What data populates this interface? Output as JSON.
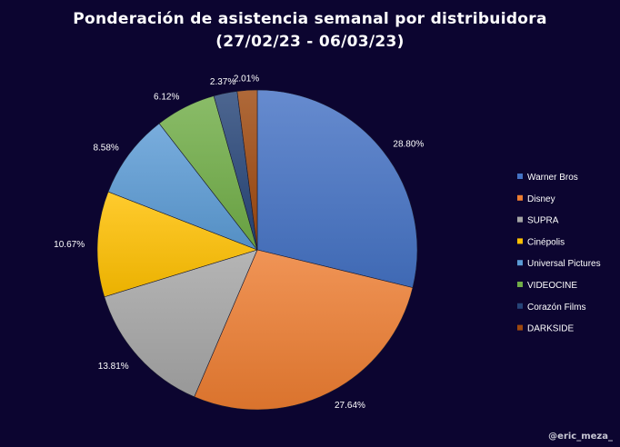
{
  "chart_data": {
    "type": "pie",
    "title": "Ponderación de asistencia semanal por distribuidora",
    "subtitle": "(27/02/23 - 06/03/23)",
    "legend_position": "right",
    "slices": [
      {
        "label": "Warner Bros",
        "value": 28.8,
        "display": "28.80%",
        "color": "#4472c4"
      },
      {
        "label": "Disney",
        "value": 27.64,
        "display": "27.64%",
        "color": "#ed7d31"
      },
      {
        "label": "SUPRA",
        "value": 13.81,
        "display": "13.81%",
        "color": "#a5a5a5"
      },
      {
        "label": "Cinépolis",
        "value": 10.67,
        "display": "10.67%",
        "color": "#ffc000"
      },
      {
        "label": "Universal Pictures",
        "value": 8.58,
        "display": "8.58%",
        "color": "#5b9bd5"
      },
      {
        "label": "VIDEOCINE",
        "value": 6.12,
        "display": "6.12%",
        "color": "#70ad47"
      },
      {
        "label": "Corazón Films",
        "value": 2.37,
        "display": "2.37%",
        "color": "#264478"
      },
      {
        "label": "DARKSIDE",
        "value": 2.01,
        "display": "2.01%",
        "color": "#9e480e"
      }
    ]
  },
  "watermark": "@eric_meza_"
}
